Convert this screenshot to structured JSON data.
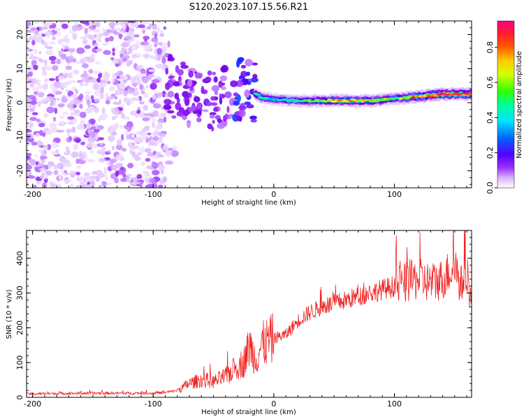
{
  "title": "S120.2023.107.15.56.R21",
  "chart_data": [
    {
      "type": "heatmap",
      "name": "spectrogram",
      "xlabel": "Height of straight line (km)",
      "ylabel": "Frequency (Hz)",
      "xlim": [
        -205,
        164
      ],
      "ylim": [
        -25,
        24
      ],
      "xticks": [
        -200,
        -100,
        0,
        100
      ],
      "yticks": [
        -20,
        -10,
        0,
        10,
        20
      ],
      "colorbar": {
        "label": "Normalized spectral amplitude",
        "range": [
          0,
          0.95
        ],
        "ticks": [
          0.0,
          0.2,
          0.4,
          0.6,
          0.8
        ],
        "colormap": [
          "#ffffff",
          "#d9b3ff",
          "#9a33ff",
          "#7a00e6",
          "#2600ff",
          "#0077ff",
          "#00e5ff",
          "#00ff66",
          "#66ff00",
          "#ffee00",
          "#ff9900",
          "#ff1a1a",
          "#ff0088"
        ]
      },
      "signal_track": {
        "x": [
          -90,
          -80,
          -70,
          -60,
          -50,
          -40,
          -30,
          -20,
          -10,
          0,
          20,
          40,
          60,
          80,
          100,
          120,
          140,
          164
        ],
        "frequency": [
          6,
          3,
          2,
          2.5,
          1,
          2,
          4,
          3.5,
          1.5,
          1,
          0.5,
          0.6,
          0.6,
          0.5,
          1.2,
          1.8,
          2.5,
          2.6
        ],
        "amplitude": [
          0.3,
          0.35,
          0.35,
          0.4,
          0.35,
          0.4,
          0.6,
          0.65,
          0.55,
          0.5,
          0.55,
          0.65,
          0.8,
          0.75,
          0.6,
          0.85,
          0.9,
          0.95
        ]
      },
      "noise_region": {
        "x_from": -205,
        "x_to": -90,
        "amplitude": "low (0.1-0.3)"
      }
    },
    {
      "type": "line",
      "name": "snr",
      "xlabel": "Height of straight line (km)",
      "ylabel": "SNR (10 * v/v)",
      "xlim": [
        -205,
        164
      ],
      "ylim": [
        0,
        480
      ],
      "xticks": [
        -200,
        -100,
        0,
        100
      ],
      "yticks": [
        0,
        100,
        200,
        300,
        400
      ],
      "color": "#ee2222",
      "series": [
        {
          "name": "SNR trend",
          "x": [
            -205,
            -150,
            -100,
            -90,
            -80,
            -70,
            -60,
            -50,
            -40,
            -30,
            -25,
            -20,
            -15,
            -10,
            0,
            10,
            20,
            30,
            40,
            50,
            60,
            70,
            80,
            90,
            100,
            110,
            120,
            130,
            140,
            150,
            155,
            160,
            164
          ],
          "y": [
            10,
            12,
            12,
            14,
            20,
            40,
            50,
            45,
            60,
            90,
            100,
            150,
            110,
            150,
            170,
            180,
            220,
            245,
            260,
            270,
            280,
            290,
            300,
            310,
            320,
            330,
            340,
            330,
            340,
            380,
            320,
            370,
            260
          ]
        }
      ]
    }
  ]
}
